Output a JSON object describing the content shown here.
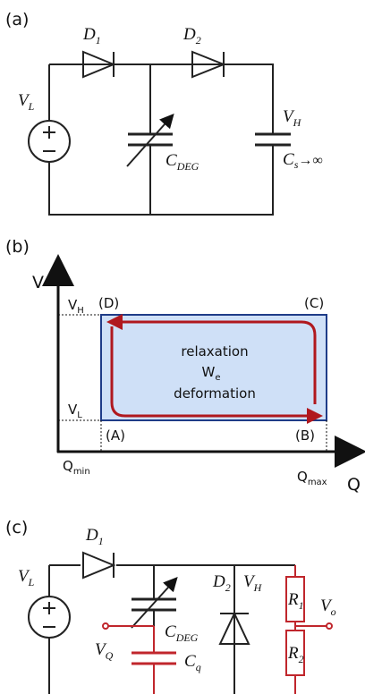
{
  "panel_a": {
    "label": "(a)",
    "d1": {
      "main": "D",
      "sub": "1"
    },
    "d2": {
      "main": "D",
      "sub": "2"
    },
    "vl": {
      "main": "V",
      "sub": "L"
    },
    "cdeg": {
      "main": "C",
      "sub": "DEG"
    },
    "vh": {
      "main": "V",
      "sub": "H"
    },
    "cs": {
      "main": "C",
      "sub": "s",
      "tail": "→∞"
    }
  },
  "panel_b": {
    "label": "(b)",
    "y_axis": "V",
    "x_axis": "Q",
    "vh": {
      "main": "V",
      "sub": "H"
    },
    "vl": {
      "main": "V",
      "sub": "L"
    },
    "qmin": {
      "main": "Q",
      "sub": "min"
    },
    "qmax": {
      "main": "Q",
      "sub": "max"
    },
    "corner_a": "(A)",
    "corner_b": "(B)",
    "corner_c": "(C)",
    "corner_d": "(D)",
    "relaxation": "relaxation",
    "we": {
      "main": "W",
      "sub": "e"
    },
    "deformation": "deformation"
  },
  "panel_c": {
    "label": "(c)",
    "d1": {
      "main": "D",
      "sub": "1"
    },
    "vl": {
      "main": "V",
      "sub": "L"
    },
    "cdeg": {
      "main": "C",
      "sub": "DEG"
    },
    "vq": {
      "main": "V",
      "sub": "Q"
    },
    "cq": {
      "main": "C",
      "sub": "q"
    },
    "d2": {
      "main": "D",
      "sub": "2"
    },
    "vh": {
      "main": "V",
      "sub": "H"
    },
    "r1": {
      "main": "R",
      "sub": "1"
    },
    "r2": {
      "main": "R",
      "sub": "2"
    },
    "vo": {
      "main": "V",
      "sub": "o"
    }
  }
}
